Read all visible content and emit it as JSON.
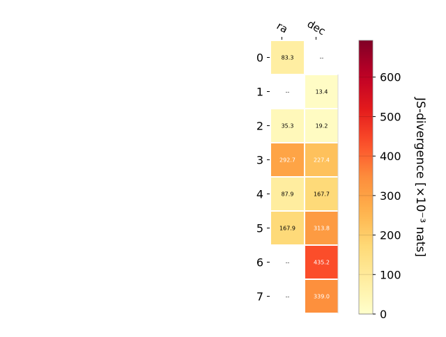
{
  "chart_data": {
    "type": "heatmap",
    "columns": [
      "ra",
      "dec"
    ],
    "rows": [
      "0",
      "1",
      "2",
      "3",
      "4",
      "5",
      "6",
      "7"
    ],
    "values": [
      [
        83.3,
        null
      ],
      [
        null,
        13.4
      ],
      [
        35.3,
        19.2
      ],
      [
        292.7,
        227.4
      ],
      [
        87.9,
        167.7
      ],
      [
        167.9,
        313.8
      ],
      [
        null,
        435.2
      ],
      [
        null,
        339.0
      ]
    ],
    "missing_label": "--",
    "colorbar": {
      "label": "JS-divergence [×10⁻³ nats]",
      "range": [
        0,
        693
      ],
      "ticks": [
        "0",
        "100",
        "200",
        "300",
        "400",
        "500",
        "600"
      ],
      "colormap": "YlOrRd"
    }
  }
}
